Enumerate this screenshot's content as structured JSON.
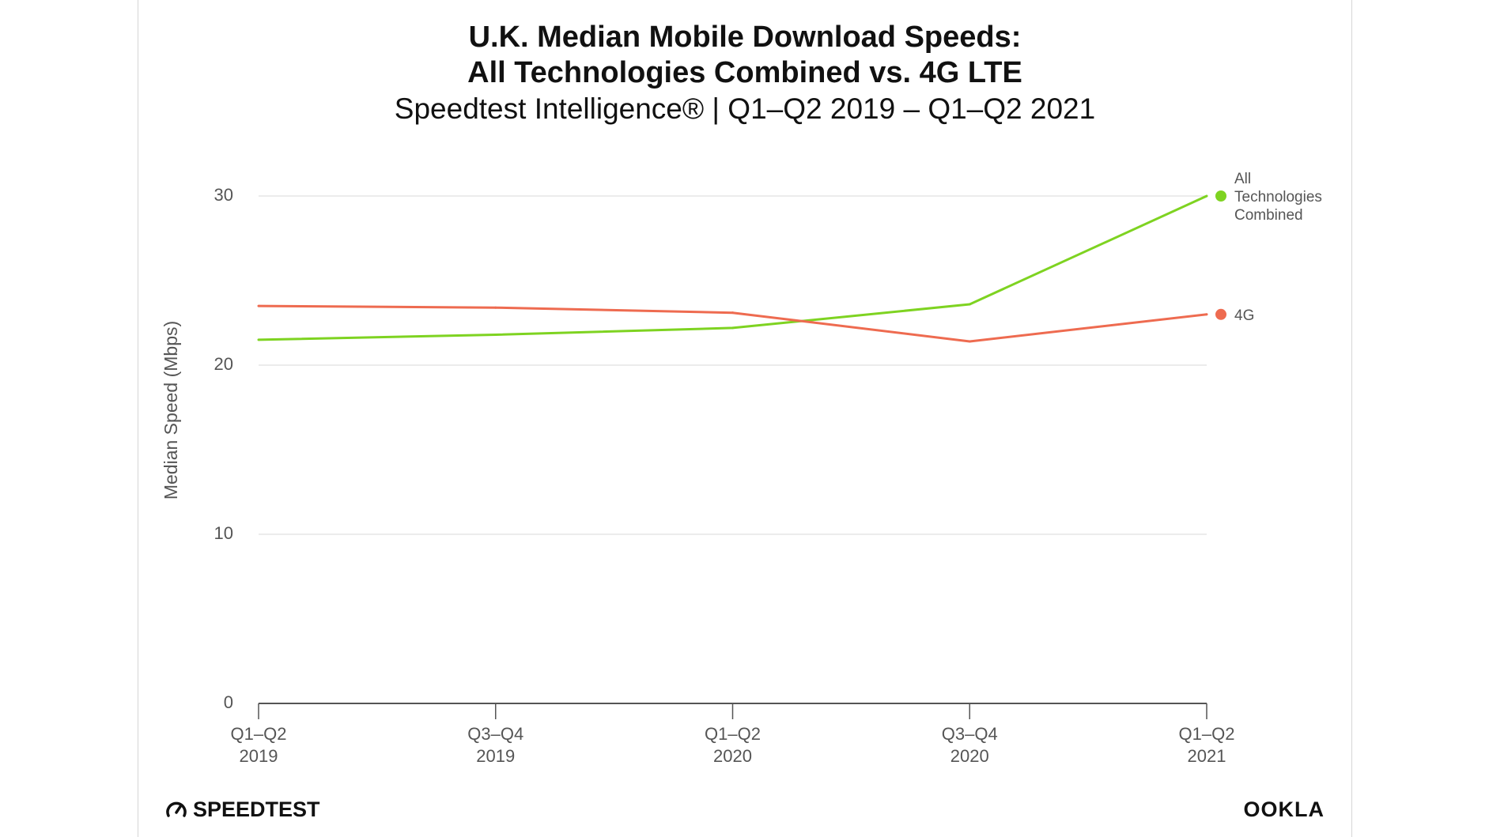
{
  "chart_data": {
    "type": "line",
    "title_line1": "U.K. Median Mobile Download Speeds:",
    "title_line2": "All Technologies Combined vs. 4G LTE",
    "subtitle": "Speedtest Intelligence® | Q1–Q2 2019 – Q1–Q2 2021",
    "ylabel": "Median Speed (Mbps)",
    "ylim": [
      0,
      30
    ],
    "yticks": [
      "0",
      "10",
      "20",
      "30"
    ],
    "grid": true,
    "legend_placement": "right, at line ends",
    "categories": [
      [
        "Q1–Q2",
        "2019"
      ],
      [
        "Q3–Q4",
        "2019"
      ],
      [
        "Q1–Q2",
        "2020"
      ],
      [
        "Q3–Q4",
        "2020"
      ],
      [
        "Q1–Q2",
        "2021"
      ]
    ],
    "series": [
      {
        "name": "All Technologies Combined",
        "label_lines": [
          "All",
          "Technologies",
          "Combined"
        ],
        "color": "#7ed321",
        "values": [
          21.5,
          21.8,
          22.2,
          23.6,
          30.0
        ]
      },
      {
        "name": "4G",
        "label_lines": [
          "4G"
        ],
        "color": "#ee6b50",
        "values": [
          23.5,
          23.4,
          23.1,
          21.4,
          23.0
        ]
      }
    ]
  },
  "branding": {
    "speedtest": "SPEEDTEST",
    "ookla": "OOKLA"
  }
}
